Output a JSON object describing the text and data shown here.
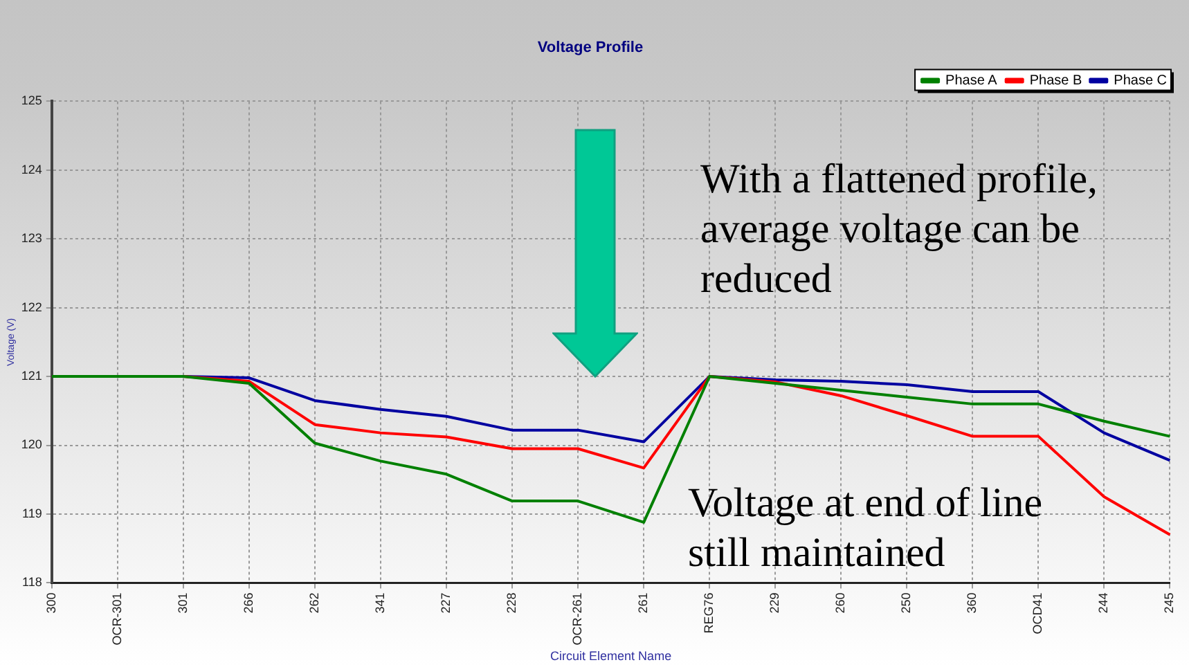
{
  "chart_data": {
    "type": "line",
    "title": "Voltage Profile",
    "xlabel": "Circuit Element Name",
    "ylabel": "Voltage (V)",
    "categories": [
      "300",
      "OCR-301",
      "301",
      "266",
      "262",
      "341",
      "227",
      "228",
      "OCR-261",
      "261",
      "REG76",
      "229",
      "260",
      "250",
      "360",
      "OCD41",
      "244",
      "245"
    ],
    "series": [
      {
        "name": "Phase A",
        "color": "#008000",
        "values": [
          121,
          121,
          121,
          120.9,
          120.03,
          119.77,
          119.58,
          119.19,
          119.19,
          118.88,
          121,
          120.9,
          120.8,
          120.7,
          120.6,
          120.6,
          120.35,
          120.13
        ]
      },
      {
        "name": "Phase B",
        "color": "#ff0000",
        "values": [
          121,
          121,
          121,
          120.93,
          120.3,
          120.18,
          120.12,
          119.95,
          119.95,
          119.67,
          121,
          120.92,
          120.72,
          120.43,
          120.13,
          120.13,
          119.25,
          118.7
        ]
      },
      {
        "name": "Phase C",
        "color": "#0000a0",
        "values": [
          121,
          121,
          121,
          120.98,
          120.65,
          120.52,
          120.42,
          120.22,
          120.22,
          120.05,
          121,
          120.95,
          120.93,
          120.88,
          120.78,
          120.78,
          120.18,
          119.78
        ]
      }
    ],
    "ylim": [
      118,
      125
    ],
    "yticks": [
      118,
      119,
      120,
      121,
      122,
      123,
      124,
      125
    ],
    "grid": true,
    "legend": "top",
    "marker": "none",
    "line_style": "solid",
    "annotations": [
      "With a flattened profile, average voltage can be reduced",
      "Voltage at end of line still maintained"
    ]
  }
}
